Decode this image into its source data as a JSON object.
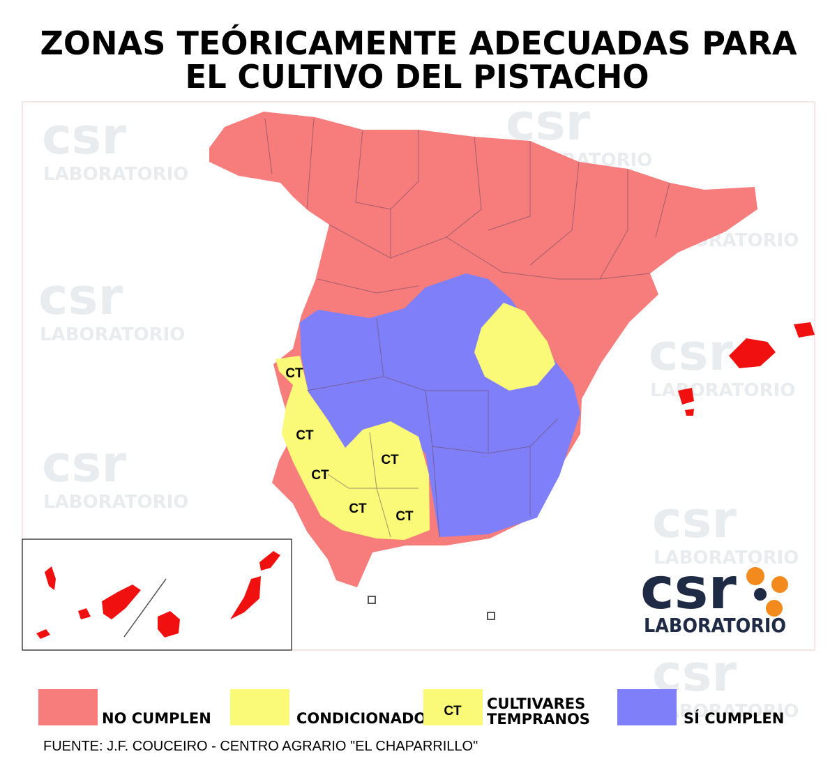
{
  "header": {
    "title_lines": [
      "ZONAS TEÓRICAMENTE ADECUADAS PARA",
      "EL CULTIVO DEL PISTACHO"
    ]
  },
  "map": {
    "labels": [
      "CT",
      "CT",
      "CT",
      "CT",
      "CT",
      "CT"
    ]
  },
  "logo": {
    "mark": "csr",
    "text": "LABORATORIO"
  },
  "watermark": {
    "mark": "csr",
    "text": "LABORATORIO"
  },
  "legend": [
    {
      "label": "NO CUMPLEN",
      "color": "#f77c7c"
    },
    {
      "label": "CONDICIONADO",
      "color": "#fafa78"
    },
    {
      "tag": "CT",
      "label_lines": [
        "CULTIVARES",
        "TEMPRANOS"
      ],
      "color": "#fafa78"
    },
    {
      "label": "SÍ CUMPLEN",
      "color": "#7f7ffa"
    }
  ],
  "source": "FUENTE: J.F. COUCEIRO - CENTRO AGRARIO \"EL CHAPARRILLO\""
}
